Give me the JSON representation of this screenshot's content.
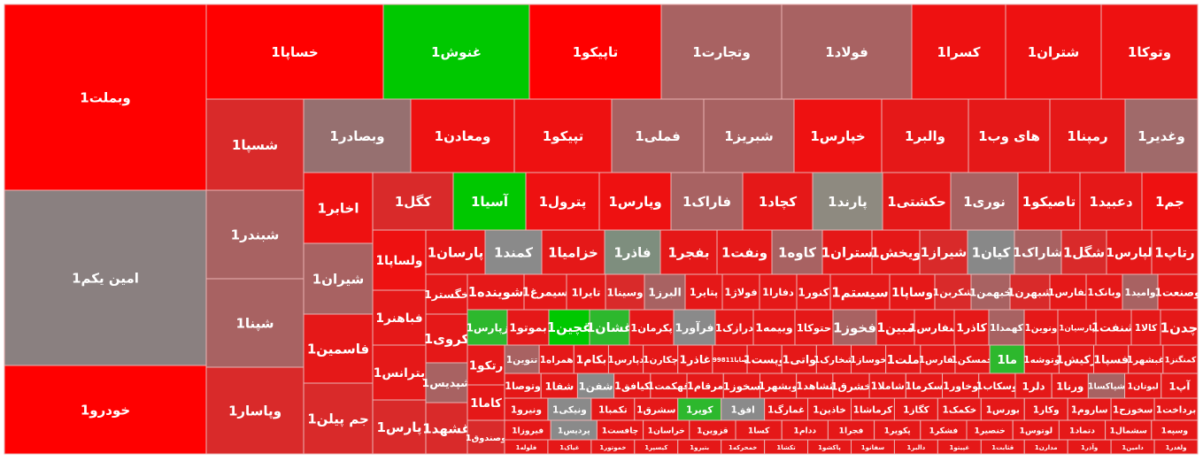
{
  "tiles": [
    {
      "label": "وبملت1",
      "color": "#ff0000"
    },
    {
      "label": "امین یکم1",
      "color": "#8a8080"
    },
    {
      "label": "خودرو1",
      "color": "#ff0000"
    },
    {
      "label": "خساپا1",
      "color": "#ff0000"
    },
    {
      "label": "غنوش1",
      "color": "#00c800"
    },
    {
      "label": "تاپیکو1",
      "color": "#ff0000"
    },
    {
      "label": "وتجارت1",
      "color": "#a86262"
    },
    {
      "label": "فولاد1",
      "color": "#a86262"
    },
    {
      "label": "کسرا1",
      "color": "#ee1111"
    },
    {
      "label": "شتران1",
      "color": "#ee1111"
    },
    {
      "label": "وتوکا1",
      "color": "#ee1111"
    },
    {
      "label": "شسپا1",
      "color": "#d92a2a"
    },
    {
      "label": "شبندر1",
      "color": "#a86262"
    },
    {
      "label": "شپنا1",
      "color": "#a86262"
    },
    {
      "label": "وپاسار1",
      "color": "#d92a2a"
    },
    {
      "label": "وبصادر1",
      "color": "#967070"
    },
    {
      "label": "ومعادن1",
      "color": "#ee1111"
    },
    {
      "label": "تپیکو1",
      "color": "#ee1111"
    },
    {
      "label": "فملی1",
      "color": "#a86262"
    },
    {
      "label": "شبریز1",
      "color": "#a86262"
    },
    {
      "label": "خپارس1",
      "color": "#ee1111"
    },
    {
      "label": "والبر1",
      "color": "#e51818"
    },
    {
      "label": "های وب1",
      "color": "#e51818"
    },
    {
      "label": "رمپنا1",
      "color": "#e51818"
    },
    {
      "label": "وغدیر1",
      "color": "#a06a6a"
    },
    {
      "label": "اخابر1",
      "color": "#ee1111"
    },
    {
      "label": "شیران1",
      "color": "#a86262"
    },
    {
      "label": "فاسمین1",
      "color": "#e51818"
    },
    {
      "label": "جم پیلن1",
      "color": "#d92a2a"
    },
    {
      "label": "کگل1",
      "color": "#d92a2a"
    },
    {
      "label": "آسیا1",
      "color": "#00c800"
    },
    {
      "label": "پترول1",
      "color": "#ee1111"
    },
    {
      "label": "وپارس1",
      "color": "#ee1111"
    },
    {
      "label": "فاراک1",
      "color": "#a86262"
    },
    {
      "label": "کچاد1",
      "color": "#e51818"
    },
    {
      "label": "پارند1",
      "color": "#8e8a80"
    },
    {
      "label": "حکشتی1",
      "color": "#e51818"
    },
    {
      "label": "نوری1",
      "color": "#a86262"
    },
    {
      "label": "تاصیکو1",
      "color": "#e51818"
    },
    {
      "label": "دعبید1",
      "color": "#e51818"
    },
    {
      "label": "جم1",
      "color": "#ee1111"
    },
    {
      "label": "ولساپا1",
      "color": "#ee1111"
    },
    {
      "label": "فباهنر1",
      "color": "#e51818"
    },
    {
      "label": "بترانس1",
      "color": "#e51818"
    },
    {
      "label": "پارس1",
      "color": "#d92a2a"
    },
    {
      "label": "پارسان1",
      "color": "#e51818"
    },
    {
      "label": "کمند1",
      "color": "#8a8a8a"
    },
    {
      "label": "خزامیا1",
      "color": "#e51818"
    },
    {
      "label": "فاذر1",
      "color": "#7e8e7e"
    },
    {
      "label": "بفجر1",
      "color": "#e51818"
    },
    {
      "label": "ونفت1",
      "color": "#e51818"
    },
    {
      "label": "کاوه1",
      "color": "#a86262"
    },
    {
      "label": "ستران1",
      "color": "#e51818"
    },
    {
      "label": "ویخش1",
      "color": "#e51818"
    },
    {
      "label": "شیراز1",
      "color": "#d92a2a"
    },
    {
      "label": "کیان1",
      "color": "#888888"
    },
    {
      "label": "شاراک1",
      "color": "#a86262"
    },
    {
      "label": "شگل1",
      "color": "#d92a2a"
    },
    {
      "label": "لپارس1",
      "color": "#e51818"
    },
    {
      "label": "رتاپ1",
      "color": "#e51818"
    },
    {
      "label": "خگستر1",
      "color": "#e51818"
    },
    {
      "label": "کروی1",
      "color": "#e51818"
    },
    {
      "label": "شپدیس1",
      "color": "#a86262"
    },
    {
      "label": "غشهد1",
      "color": "#d92a2a"
    },
    {
      "label": "شوینده1",
      "color": "#e51818"
    },
    {
      "label": "سیمرغ1",
      "color": "#e51818"
    },
    {
      "label": "تایرا1",
      "color": "#e51818"
    },
    {
      "label": "وسینا1",
      "color": "#d92a2a"
    },
    {
      "label": "البرز1",
      "color": "#a86262"
    },
    {
      "label": "پتایر1",
      "color": "#e51818"
    },
    {
      "label": "فولاژ1",
      "color": "#e51818"
    },
    {
      "label": "دفارا1",
      "color": "#e51818"
    },
    {
      "label": "کنور1",
      "color": "#e51818"
    },
    {
      "label": "سیستم1",
      "color": "#e51818"
    },
    {
      "label": "وساپا1",
      "color": "#e51818"
    },
    {
      "label": "شکربن1",
      "color": "#d92a2a"
    },
    {
      "label": "خبهمن1",
      "color": "#a86262"
    },
    {
      "label": "شبهرن1",
      "color": "#d92a2a"
    },
    {
      "label": "ثفارس1",
      "color": "#e51818"
    },
    {
      "label": "وبانک1",
      "color": "#e51818"
    },
    {
      "label": "وامید1",
      "color": "#a86262"
    },
    {
      "label": "وصنعت1",
      "color": "#e51818"
    },
    {
      "label": "زپارس1",
      "color": "#2db82d"
    },
    {
      "label": "بموتو1",
      "color": "#e51818"
    },
    {
      "label": "غچین1",
      "color": "#00c800"
    },
    {
      "label": "غشان1",
      "color": "#2db82d"
    },
    {
      "label": "پکرمان1",
      "color": "#e51818"
    },
    {
      "label": "فرآور1",
      "color": "#8a8a8a"
    },
    {
      "label": "درازک1",
      "color": "#e51818"
    },
    {
      "label": "وبیمه1",
      "color": "#e51818"
    },
    {
      "label": "حتوکا1",
      "color": "#e51818"
    },
    {
      "label": "فخوز1",
      "color": "#a86262"
    },
    {
      "label": "مبین1",
      "color": "#e51818"
    },
    {
      "label": "سفارس1",
      "color": "#e51818"
    },
    {
      "label": "کاذر1",
      "color": "#e51818"
    },
    {
      "label": "کهمدا1",
      "color": "#a86262"
    },
    {
      "label": "ونوین1",
      "color": "#e51818"
    },
    {
      "label": "پارسیان1",
      "color": "#e51818"
    },
    {
      "label": "شنفت1",
      "color": "#e51818"
    },
    {
      "label": "کالا1",
      "color": "#e51818"
    },
    {
      "label": "چدن1",
      "color": "#e51818"
    },
    {
      "label": "رتکو1",
      "color": "#e51818"
    },
    {
      "label": "کاما1",
      "color": "#e51818"
    },
    {
      "label": "وصندوق1",
      "color": "#d92a2a"
    },
    {
      "label": "تتوین1",
      "color": "#a86262"
    },
    {
      "label": "همراه1",
      "color": "#e51818"
    },
    {
      "label": "بکام1",
      "color": "#e51818"
    },
    {
      "label": "دپارس1",
      "color": "#e51818"
    },
    {
      "label": "چکارن1",
      "color": "#e51818"
    },
    {
      "label": "غاذر1",
      "color": "#e51818"
    },
    {
      "label": "9981صایا1",
      "color": "#e51818"
    },
    {
      "label": "وپست1",
      "color": "#e51818"
    },
    {
      "label": "واتی1",
      "color": "#e51818"
    },
    {
      "label": "شخارک1",
      "color": "#e51818"
    },
    {
      "label": "خوساز1",
      "color": "#e51818"
    },
    {
      "label": "ملت1",
      "color": "#e51818"
    },
    {
      "label": "ثفارس1",
      "color": "#e51818"
    },
    {
      "label": "خمسکن1",
      "color": "#e51818"
    },
    {
      "label": "ما1",
      "color": "#2db82d"
    },
    {
      "label": "وتوشه1",
      "color": "#e51818"
    },
    {
      "label": "رکیش1",
      "color": "#e51818"
    },
    {
      "label": "فسپا1",
      "color": "#e51818"
    },
    {
      "label": "غبشهر1",
      "color": "#e51818"
    },
    {
      "label": "کمنگنز1",
      "color": "#e51818"
    },
    {
      "label": "وتوصا1",
      "color": "#e51818"
    },
    {
      "label": "شفا1",
      "color": "#e51818"
    },
    {
      "label": "شفن1",
      "color": "#8a8a8a"
    },
    {
      "label": "کیافق1",
      "color": "#e51818"
    },
    {
      "label": "قهکمت1",
      "color": "#e51818"
    },
    {
      "label": "مرقام1",
      "color": "#e51818"
    },
    {
      "label": "سخوز1",
      "color": "#e51818"
    },
    {
      "label": "وبشهر1",
      "color": "#e51818"
    },
    {
      "label": "تشاهد1",
      "color": "#e51818"
    },
    {
      "label": "خشرق1",
      "color": "#e51818"
    },
    {
      "label": "شاملا1",
      "color": "#e51818"
    },
    {
      "label": "سکرما1",
      "color": "#e51818"
    },
    {
      "label": "وخاور1",
      "color": "#e51818"
    },
    {
      "label": "وسکاب1",
      "color": "#e51818"
    },
    {
      "label": "دلر1",
      "color": "#e51818"
    },
    {
      "label": "ورنا1",
      "color": "#e51818"
    },
    {
      "label": "شپاکسا1",
      "color": "#a86262"
    },
    {
      "label": "لبوتان1",
      "color": "#e51818"
    },
    {
      "label": "آپ1",
      "color": "#e51818"
    },
    {
      "label": "ونیرو1",
      "color": "#e51818"
    },
    {
      "label": "ونیکی1",
      "color": "#8a8a8a"
    },
    {
      "label": "تکمبا1",
      "color": "#e51818"
    },
    {
      "label": "سشرق1",
      "color": "#e51818"
    },
    {
      "label": "کویر1",
      "color": "#2db82d"
    },
    {
      "label": "افق1",
      "color": "#8a8a8a"
    },
    {
      "label": "غمارگ1",
      "color": "#e51818"
    },
    {
      "label": "خاذین1",
      "color": "#e51818"
    },
    {
      "label": "کرماشا1",
      "color": "#e51818"
    },
    {
      "label": "کگاز1",
      "color": "#e51818"
    },
    {
      "label": "خکمک1",
      "color": "#e51818"
    },
    {
      "label": "بورس1",
      "color": "#e51818"
    },
    {
      "label": "وکار1",
      "color": "#e51818"
    },
    {
      "label": "ساروم1",
      "color": "#e51818"
    },
    {
      "label": "سخوزح1",
      "color": "#e51818"
    },
    {
      "label": "برداخت1",
      "color": "#e51818"
    },
    {
      "label": "فیروزا1",
      "color": "#e51818"
    },
    {
      "label": "پردیس1",
      "color": "#8a8a8a"
    },
    {
      "label": "چافست1",
      "color": "#e51818"
    },
    {
      "label": "خراسان1",
      "color": "#e51818"
    },
    {
      "label": "قزوین1",
      "color": "#e51818"
    },
    {
      "label": "کسا1",
      "color": "#e51818"
    },
    {
      "label": "ددام1",
      "color": "#e51818"
    },
    {
      "label": "فجرا1",
      "color": "#e51818"
    },
    {
      "label": "پکویر1",
      "color": "#e51818"
    },
    {
      "label": "فشکر1",
      "color": "#e51818"
    },
    {
      "label": "خنصیر1",
      "color": "#e51818"
    },
    {
      "label": "لوتوس1",
      "color": "#e51818"
    },
    {
      "label": "دتماد1",
      "color": "#e51818"
    },
    {
      "label": "سشمال1",
      "color": "#e51818"
    },
    {
      "label": "وسپه1",
      "color": "#e51818"
    },
    {
      "label": "فلوله1",
      "color": "#e51818"
    },
    {
      "label": "غیاک1",
      "color": "#e51818"
    },
    {
      "label": "خموتور1",
      "color": "#e51818"
    },
    {
      "label": "کیسپر1",
      "color": "#e51818"
    },
    {
      "label": "بتیرو1",
      "color": "#e51818"
    },
    {
      "label": "خمحرکه1",
      "color": "#e51818"
    },
    {
      "label": "تکشا1",
      "color": "#e51818"
    },
    {
      "label": "پاکشو1",
      "color": "#e51818"
    },
    {
      "label": "سفانو1",
      "color": "#e51818"
    },
    {
      "label": "دالبر1",
      "color": "#e51818"
    },
    {
      "label": "غپیتو1",
      "color": "#e51818"
    },
    {
      "label": "قثابت1",
      "color": "#e51818"
    },
    {
      "label": "مدارن1",
      "color": "#e51818"
    },
    {
      "label": "وآذر1",
      "color": "#e51818"
    },
    {
      "label": "دامین1",
      "color": "#e51818"
    },
    {
      "label": "ولغدر1",
      "color": "#e51818"
    }
  ]
}
